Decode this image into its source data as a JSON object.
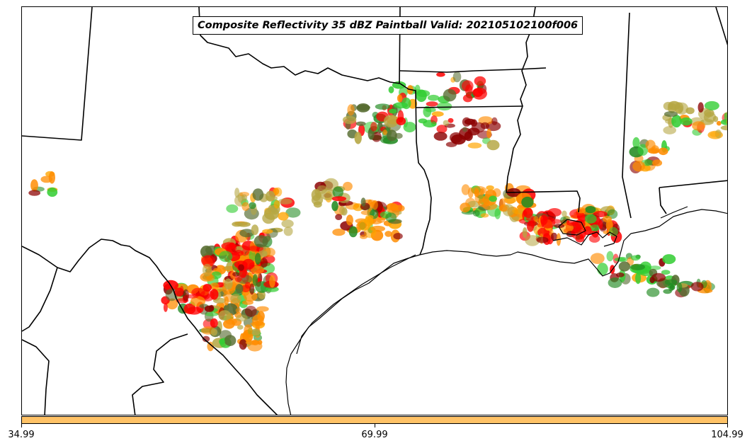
{
  "title": "Composite Reflectivity 35 dBZ Paintball Valid: 202105102100f006",
  "colorbar": {
    "color": "#ffc266",
    "tick_labels": [
      "34.99",
      "69.99",
      "104.99"
    ]
  },
  "colors": {
    "member_colors": [
      "#ff0000",
      "#ff8c00",
      "#228b22",
      "#32cd32",
      "#8b0000",
      "#b5a642",
      "#556b2f",
      "#ffa500"
    ]
  },
  "map": {
    "region": "Texas, Louisiana, Gulf Coast",
    "features": [
      "state-borders",
      "coastline",
      "mexico-border",
      "paintball-reflectivity-blobs"
    ]
  }
}
